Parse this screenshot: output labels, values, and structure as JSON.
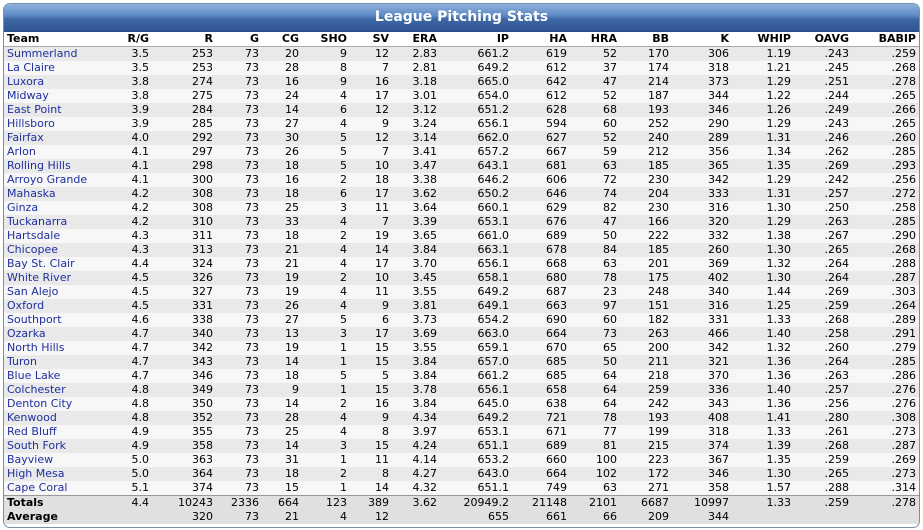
{
  "title": "League Pitching Stats",
  "columns": [
    "Team",
    "R/G",
    "R",
    "G",
    "CG",
    "SHO",
    "SV",
    "ERA",
    "IP",
    "HA",
    "HRA",
    "BB",
    "K",
    "WHIP",
    "OAVG",
    "BABIP"
  ],
  "rows": [
    [
      "Summerland",
      "3.5",
      "253",
      "73",
      "20",
      "9",
      "12",
      "2.83",
      "661.2",
      "619",
      "52",
      "170",
      "306",
      "1.19",
      ".243",
      ".259"
    ],
    [
      "La Claire",
      "3.5",
      "253",
      "73",
      "28",
      "8",
      "7",
      "2.81",
      "649.2",
      "612",
      "37",
      "174",
      "318",
      "1.21",
      ".245",
      ".268"
    ],
    [
      "Luxora",
      "3.8",
      "274",
      "73",
      "16",
      "9",
      "16",
      "3.18",
      "665.0",
      "642",
      "47",
      "214",
      "373",
      "1.29",
      ".251",
      ".278"
    ],
    [
      "Midway",
      "3.8",
      "275",
      "73",
      "24",
      "4",
      "17",
      "3.01",
      "654.0",
      "612",
      "52",
      "187",
      "344",
      "1.22",
      ".244",
      ".265"
    ],
    [
      "East Point",
      "3.9",
      "284",
      "73",
      "14",
      "6",
      "12",
      "3.12",
      "651.2",
      "628",
      "68",
      "193",
      "346",
      "1.26",
      ".249",
      ".266"
    ],
    [
      "Hillsboro",
      "3.9",
      "285",
      "73",
      "27",
      "4",
      "9",
      "3.24",
      "656.1",
      "594",
      "60",
      "252",
      "290",
      "1.29",
      ".243",
      ".265"
    ],
    [
      "Fairfax",
      "4.0",
      "292",
      "73",
      "30",
      "5",
      "12",
      "3.14",
      "662.0",
      "627",
      "52",
      "240",
      "289",
      "1.31",
      ".246",
      ".260"
    ],
    [
      "Arlon",
      "4.1",
      "297",
      "73",
      "26",
      "5",
      "7",
      "3.41",
      "657.2",
      "667",
      "59",
      "212",
      "356",
      "1.34",
      ".262",
      ".285"
    ],
    [
      "Rolling Hills",
      "4.1",
      "298",
      "73",
      "18",
      "5",
      "10",
      "3.47",
      "643.1",
      "681",
      "63",
      "185",
      "365",
      "1.35",
      ".269",
      ".293"
    ],
    [
      "Arroyo Grande",
      "4.1",
      "300",
      "73",
      "16",
      "2",
      "18",
      "3.38",
      "646.2",
      "606",
      "72",
      "230",
      "342",
      "1.29",
      ".242",
      ".256"
    ],
    [
      "Mahaska",
      "4.2",
      "308",
      "73",
      "18",
      "6",
      "17",
      "3.62",
      "650.2",
      "646",
      "74",
      "204",
      "333",
      "1.31",
      ".257",
      ".272"
    ],
    [
      "Ginza",
      "4.2",
      "308",
      "73",
      "25",
      "3",
      "11",
      "3.64",
      "660.1",
      "629",
      "82",
      "230",
      "316",
      "1.30",
      ".250",
      ".258"
    ],
    [
      "Tuckanarra",
      "4.2",
      "310",
      "73",
      "33",
      "4",
      "7",
      "3.39",
      "653.1",
      "676",
      "47",
      "166",
      "320",
      "1.29",
      ".263",
      ".285"
    ],
    [
      "Hartsdale",
      "4.3",
      "311",
      "73",
      "18",
      "2",
      "19",
      "3.65",
      "661.0",
      "689",
      "50",
      "222",
      "332",
      "1.38",
      ".267",
      ".290"
    ],
    [
      "Chicopee",
      "4.3",
      "313",
      "73",
      "21",
      "4",
      "14",
      "3.84",
      "663.1",
      "678",
      "84",
      "185",
      "260",
      "1.30",
      ".265",
      ".268"
    ],
    [
      "Bay St. Clair",
      "4.4",
      "324",
      "73",
      "21",
      "4",
      "17",
      "3.70",
      "656.1",
      "668",
      "63",
      "201",
      "369",
      "1.32",
      ".264",
      ".288"
    ],
    [
      "White River",
      "4.5",
      "326",
      "73",
      "19",
      "2",
      "10",
      "3.45",
      "658.1",
      "680",
      "78",
      "175",
      "402",
      "1.30",
      ".264",
      ".287"
    ],
    [
      "San Alejo",
      "4.5",
      "327",
      "73",
      "19",
      "4",
      "11",
      "3.55",
      "649.2",
      "687",
      "23",
      "248",
      "340",
      "1.44",
      ".269",
      ".303"
    ],
    [
      "Oxford",
      "4.5",
      "331",
      "73",
      "26",
      "4",
      "9",
      "3.81",
      "649.1",
      "663",
      "97",
      "151",
      "316",
      "1.25",
      ".259",
      ".264"
    ],
    [
      "Southport",
      "4.6",
      "338",
      "73",
      "27",
      "5",
      "6",
      "3.73",
      "654.2",
      "690",
      "60",
      "182",
      "331",
      "1.33",
      ".268",
      ".289"
    ],
    [
      "Ozarka",
      "4.7",
      "340",
      "73",
      "13",
      "3",
      "17",
      "3.69",
      "663.0",
      "664",
      "73",
      "263",
      "466",
      "1.40",
      ".258",
      ".291"
    ],
    [
      "North Hills",
      "4.7",
      "342",
      "73",
      "19",
      "1",
      "15",
      "3.55",
      "659.1",
      "670",
      "65",
      "200",
      "342",
      "1.32",
      ".260",
      ".279"
    ],
    [
      "Turon",
      "4.7",
      "343",
      "73",
      "14",
      "1",
      "15",
      "3.84",
      "657.0",
      "685",
      "50",
      "211",
      "321",
      "1.36",
      ".264",
      ".285"
    ],
    [
      "Blue Lake",
      "4.7",
      "346",
      "73",
      "18",
      "5",
      "5",
      "3.84",
      "661.2",
      "685",
      "64",
      "218",
      "370",
      "1.36",
      ".263",
      ".286"
    ],
    [
      "Colchester",
      "4.8",
      "349",
      "73",
      "9",
      "1",
      "15",
      "3.78",
      "656.1",
      "658",
      "64",
      "259",
      "336",
      "1.40",
      ".257",
      ".276"
    ],
    [
      "Denton City",
      "4.8",
      "350",
      "73",
      "14",
      "2",
      "16",
      "3.84",
      "645.0",
      "638",
      "64",
      "242",
      "343",
      "1.36",
      ".256",
      ".276"
    ],
    [
      "Kenwood",
      "4.8",
      "352",
      "73",
      "28",
      "4",
      "9",
      "4.34",
      "649.2",
      "721",
      "78",
      "193",
      "408",
      "1.41",
      ".280",
      ".308"
    ],
    [
      "Red Bluff",
      "4.9",
      "355",
      "73",
      "25",
      "4",
      "8",
      "3.97",
      "653.1",
      "671",
      "77",
      "199",
      "318",
      "1.33",
      ".261",
      ".273"
    ],
    [
      "South Fork",
      "4.9",
      "358",
      "73",
      "14",
      "3",
      "15",
      "4.24",
      "651.1",
      "689",
      "81",
      "215",
      "374",
      "1.39",
      ".268",
      ".287"
    ],
    [
      "Bayview",
      "5.0",
      "363",
      "73",
      "31",
      "1",
      "11",
      "4.14",
      "653.2",
      "660",
      "100",
      "223",
      "367",
      "1.35",
      ".259",
      ".269"
    ],
    [
      "High Mesa",
      "5.0",
      "364",
      "73",
      "18",
      "2",
      "8",
      "4.27",
      "643.0",
      "664",
      "102",
      "172",
      "346",
      "1.30",
      ".265",
      ".273"
    ],
    [
      "Cape Coral",
      "5.1",
      "374",
      "73",
      "15",
      "1",
      "14",
      "4.32",
      "651.1",
      "749",
      "63",
      "271",
      "358",
      "1.57",
      ".288",
      ".314"
    ]
  ],
  "totals": [
    "Totals",
    "4.4",
    "10243",
    "2336",
    "664",
    "123",
    "389",
    "3.62",
    "20949.2",
    "21148",
    "2101",
    "6687",
    "10997",
    "1.33",
    ".259",
    ".278"
  ],
  "average": [
    "Average",
    "",
    "320",
    "73",
    "21",
    "4",
    "12",
    "",
    "655",
    "661",
    "66",
    "209",
    "344",
    "",
    "",
    ""
  ]
}
